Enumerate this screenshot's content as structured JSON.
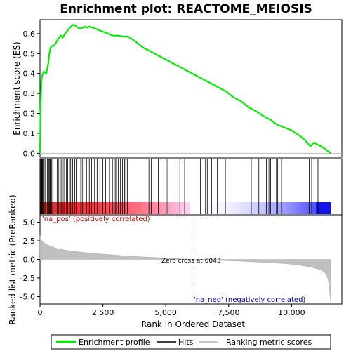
{
  "chart_data": {
    "type": "line",
    "title": "Enrichment plot: REACTOME_MEIOSIS",
    "top_panel": {
      "ylabel": "Enrichment score (ES)",
      "ylim": [
        -0.02,
        0.67
      ],
      "yticks": [
        "0.0",
        "0.1",
        "0.2",
        "0.3",
        "0.4",
        "0.5",
        "0.6"
      ],
      "ytick_values": [
        0.0,
        0.1,
        0.2,
        0.3,
        0.4,
        0.5,
        0.6
      ],
      "series": [
        {
          "name": "Enrichment profile",
          "color": "#00ee00",
          "x": [
            0,
            20,
            50,
            90,
            150,
            250,
            330,
            360,
            420,
            500,
            560,
            620,
            700,
            760,
            820,
            900,
            1000,
            1060,
            1120,
            1200,
            1260,
            1330,
            1400,
            1500,
            1620,
            1700,
            1780,
            1850,
            1950,
            2100,
            2300,
            2500,
            2700,
            2900,
            3100,
            3300,
            3500,
            3800,
            4100,
            4400,
            4700,
            5000,
            5300,
            5600,
            5900,
            6200,
            6500,
            6800,
            7100,
            7400,
            7700,
            8000,
            8300,
            8600,
            8900,
            9200,
            9400,
            9700,
            10000,
            10300,
            10500,
            10650,
            10750,
            10900,
            11000,
            11100,
            11300,
            11550
          ],
          "y": [
            0.0,
            0.2,
            0.36,
            0.39,
            0.41,
            0.4,
            0.45,
            0.49,
            0.53,
            0.54,
            0.54,
            0.55,
            0.57,
            0.58,
            0.59,
            0.58,
            0.6,
            0.61,
            0.62,
            0.63,
            0.64,
            0.645,
            0.64,
            0.63,
            0.625,
            0.63,
            0.635,
            0.63,
            0.635,
            0.63,
            0.62,
            0.61,
            0.6,
            0.59,
            0.59,
            0.585,
            0.585,
            0.56,
            0.53,
            0.51,
            0.49,
            0.47,
            0.45,
            0.43,
            0.41,
            0.39,
            0.37,
            0.35,
            0.33,
            0.31,
            0.28,
            0.26,
            0.23,
            0.21,
            0.185,
            0.165,
            0.145,
            0.13,
            0.115,
            0.09,
            0.07,
            0.05,
            0.035,
            0.055,
            0.045,
            0.04,
            0.025,
            0.0
          ]
        }
      ]
    },
    "hits": [
      5,
      30,
      60,
      80,
      100,
      130,
      160,
      200,
      240,
      290,
      330,
      360,
      390,
      410,
      440,
      470,
      520,
      600,
      680,
      730,
      790,
      840,
      890,
      950,
      1050,
      1100,
      1170,
      1220,
      1300,
      1380,
      1440,
      1620,
      1680,
      1740,
      1850,
      1960,
      2050,
      2170,
      2270,
      2380,
      2500,
      2610,
      2760,
      2880,
      2940,
      2990,
      3040,
      3110,
      3200,
      3280,
      3360,
      3410,
      3470,
      4330,
      4370,
      4420,
      4700,
      5020,
      5080,
      5480,
      5560,
      5750,
      6380,
      6580,
      6650,
      6820,
      7050,
      7370,
      8400,
      8700,
      9000,
      9100,
      9170,
      9400,
      9450,
      9600,
      10700,
      10730,
      10800,
      11050
    ],
    "bottom_panel": {
      "ylabel": "Ranked list metric (PreRanked)",
      "ylim": [
        -6,
        6
      ],
      "yticks": [
        "5.0",
        "2.5",
        "0.0",
        "-2.5",
        "-5.0"
      ],
      "ytick_values": [
        5.0,
        2.5,
        0.0,
        -2.5,
        -5.0
      ],
      "metric_curve_x": [
        0,
        20,
        60,
        120,
        200,
        300,
        450,
        600,
        800,
        1000,
        1300,
        1700,
        2200,
        2800,
        3500,
        4300,
        5200,
        6043,
        7000,
        8000,
        8800,
        9500,
        10000,
        10400,
        10700,
        10900,
        11100,
        11250,
        11350,
        11420,
        11470,
        11500,
        11550
      ],
      "metric_curve_y": [
        3.2,
        2.9,
        2.6,
        2.35,
        2.15,
        1.95,
        1.75,
        1.55,
        1.38,
        1.25,
        1.1,
        0.95,
        0.78,
        0.62,
        0.45,
        0.3,
        0.15,
        0.0,
        -0.12,
        -0.25,
        -0.38,
        -0.52,
        -0.65,
        -0.82,
        -1.0,
        -1.15,
        -1.35,
        -1.6,
        -1.9,
        -2.3,
        -3.0,
        -4.0,
        -5.6
      ],
      "zero_cross_rank": 6043,
      "zero_cross_label": "Zero cross at 6043",
      "pos_label": "'na_pos' (positively correlated)",
      "neg_label": "'na_neg' (negatively correlated)"
    },
    "xlabel": "Rank in Ordered Dataset",
    "xlim": [
      0,
      12000
    ],
    "xticks": [
      "0",
      "2,500",
      "5,000",
      "7,500",
      "10,000"
    ],
    "xtick_values": [
      0,
      2500,
      5000,
      7500,
      10000
    ],
    "legend": {
      "placement": "bottom",
      "items": [
        "Enrichment profile",
        "Hits",
        "Ranking metric scores"
      ]
    }
  }
}
